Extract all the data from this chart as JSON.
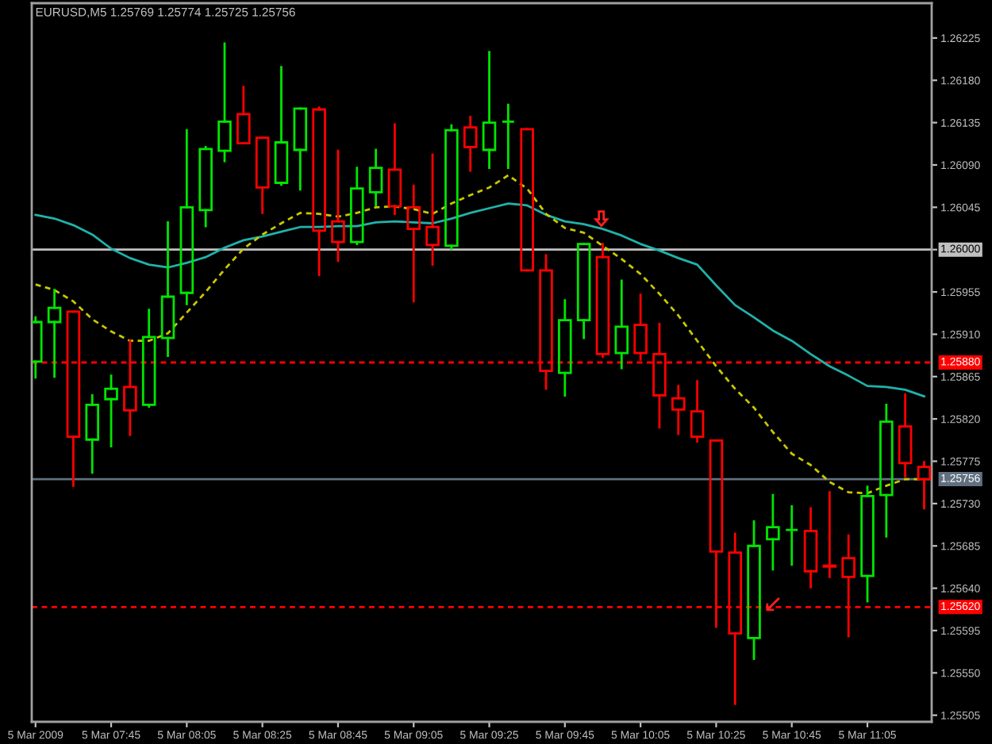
{
  "chart_data": {
    "type": "candlestick",
    "title": "EURUSD,M5 1.25769 1.25774 1.25725 1.25756",
    "x": [
      "2009-03-05T07:25",
      "2009-03-05T07:30",
      "2009-03-05T07:35",
      "2009-03-05T07:40",
      "2009-03-05T07:45",
      "2009-03-05T07:50",
      "2009-03-05T07:55",
      "2009-03-05T08:00",
      "2009-03-05T08:05",
      "2009-03-05T08:10",
      "2009-03-05T08:15",
      "2009-03-05T08:20",
      "2009-03-05T08:25",
      "2009-03-05T08:30",
      "2009-03-05T08:35",
      "2009-03-05T08:40",
      "2009-03-05T08:45",
      "2009-03-05T08:50",
      "2009-03-05T08:55",
      "2009-03-05T09:00",
      "2009-03-05T09:05",
      "2009-03-05T09:10",
      "2009-03-05T09:15",
      "2009-03-05T09:20",
      "2009-03-05T09:25",
      "2009-03-05T09:30",
      "2009-03-05T09:35",
      "2009-03-05T09:40",
      "2009-03-05T09:45",
      "2009-03-05T09:50",
      "2009-03-05T09:55",
      "2009-03-05T10:00",
      "2009-03-05T10:05",
      "2009-03-05T10:10",
      "2009-03-05T10:15",
      "2009-03-05T10:20",
      "2009-03-05T10:25",
      "2009-03-05T10:30",
      "2009-03-05T10:35",
      "2009-03-05T10:40",
      "2009-03-05T10:45",
      "2009-03-05T10:50",
      "2009-03-05T10:55",
      "2009-03-05T11:00",
      "2009-03-05T11:05",
      "2009-03-05T11:10",
      "2009-03-05T11:15",
      "2009-03-05T11:20"
    ],
    "ohlc": [
      [
        1.25881,
        1.25928,
        1.25864,
        1.25923
      ],
      [
        1.25923,
        1.25957,
        1.25865,
        1.25938
      ],
      [
        1.25934,
        1.25934,
        1.25749,
        1.25801
      ],
      [
        1.25798,
        1.25845,
        1.25763,
        1.25835
      ],
      [
        1.25841,
        1.25866,
        1.25791,
        1.25852
      ],
      [
        1.25854,
        1.25903,
        1.25803,
        1.25829
      ],
      [
        1.25835,
        1.25936,
        1.25833,
        1.25907
      ],
      [
        1.25906,
        1.26029,
        1.25887,
        1.2595
      ],
      [
        1.25954,
        1.26127,
        1.25942,
        1.26045
      ],
      [
        1.26042,
        1.26109,
        1.26025,
        1.26107
      ],
      [
        1.26105,
        1.26219,
        1.26094,
        1.26136
      ],
      [
        1.26144,
        1.26173,
        1.26113,
        1.26113
      ],
      [
        1.26119,
        1.26119,
        1.26039,
        1.26066
      ],
      [
        1.26071,
        1.26194,
        1.26069,
        1.26114
      ],
      [
        1.26106,
        1.2615,
        1.26064,
        1.2615
      ],
      [
        1.26149,
        1.26151,
        1.25973,
        1.2602
      ],
      [
        1.2603,
        1.26105,
        1.25988,
        1.26008
      ],
      [
        1.26008,
        1.26087,
        1.26006,
        1.26065
      ],
      [
        1.26061,
        1.26106,
        1.26047,
        1.26087
      ],
      [
        1.26085,
        1.26133,
        1.26038,
        1.26046
      ],
      [
        1.26045,
        1.26068,
        1.25945,
        1.26022
      ],
      [
        1.26024,
        1.26101,
        1.25984,
        1.26005
      ],
      [
        1.26004,
        1.26132,
        1.26001,
        1.26127
      ],
      [
        1.2613,
        1.26141,
        1.26084,
        1.26109
      ],
      [
        1.26106,
        1.2621,
        1.26087,
        1.26135
      ],
      [
        1.26136,
        1.26154,
        1.26087,
        1.26136
      ],
      [
        1.26128,
        1.26128,
        1.25978,
        1.25978
      ],
      [
        1.25978,
        1.25994,
        1.25852,
        1.25871
      ],
      [
        1.25869,
        1.25946,
        1.25845,
        1.25925
      ],
      [
        1.25925,
        1.26006,
        1.25906,
        1.26006
      ],
      [
        1.25992,
        1.26006,
        1.25886,
        1.25889
      ],
      [
        1.2589,
        1.25967,
        1.25874,
        1.25918
      ],
      [
        1.2592,
        1.25952,
        1.25883,
        1.2589
      ],
      [
        1.25889,
        1.25921,
        1.25811,
        1.25845
      ],
      [
        1.25842,
        1.25855,
        1.25804,
        1.2583
      ],
      [
        1.25828,
        1.2586,
        1.25796,
        1.25801
      ],
      [
        1.25797,
        1.25797,
        1.25599,
        1.25679
      ],
      [
        1.25678,
        1.25698,
        1.25517,
        1.25592
      ],
      [
        1.25587,
        1.25711,
        1.25565,
        1.25685
      ],
      [
        1.25692,
        1.25739,
        1.2566,
        1.25705
      ],
      [
        1.25702,
        1.25727,
        1.25665,
        1.25702
      ],
      [
        1.25701,
        1.25725,
        1.25641,
        1.25658
      ],
      [
        1.25664,
        1.25742,
        1.25652,
        1.25663
      ],
      [
        1.25672,
        1.25696,
        1.25589,
        1.25652
      ],
      [
        1.25653,
        1.25748,
        1.25626,
        1.25738
      ],
      [
        1.25739,
        1.25835,
        1.25695,
        1.25817
      ],
      [
        1.25812,
        1.25846,
        1.25759,
        1.25773
      ],
      [
        1.25769,
        1.25774,
        1.25725,
        1.25756
      ]
    ],
    "colors": [
      "#00e600",
      "#00e600",
      "#ff0000",
      "#00e600",
      "#00e600",
      "#ff0000",
      "#00e600",
      "#00e600",
      "#00e600",
      "#00e600",
      "#00e600",
      "#ff0000",
      "#ff0000",
      "#00e600",
      "#00e600",
      "#ff0000",
      "#ff0000",
      "#00e600",
      "#00e600",
      "#ff0000",
      "#ff0000",
      "#ff0000",
      "#00e600",
      "#ff0000",
      "#00e600",
      "#00e600",
      "#ff0000",
      "#ff0000",
      "#00e600",
      "#00e600",
      "#ff0000",
      "#00e600",
      "#ff0000",
      "#ff0000",
      "#ff0000",
      "#ff0000",
      "#ff0000",
      "#ff0000",
      "#00e600",
      "#00e600",
      "#00e600",
      "#ff0000",
      "#ff0000",
      "#ff0000",
      "#00e600",
      "#00e600",
      "#ff0000",
      "#ff0000"
    ],
    "series": [
      {
        "type": "line",
        "color": "#20b2aa",
        "line_style": "solid",
        "values": [
          1.26037,
          1.26033,
          1.26026,
          1.26016,
          1.26001,
          1.25991,
          1.25984,
          1.25981,
          1.25986,
          1.25992,
          1.26002,
          1.2601,
          1.26014,
          1.26019,
          1.26024,
          1.26024,
          1.26025,
          1.26025,
          1.26029,
          1.2603,
          1.26029,
          1.26028,
          1.26033,
          1.26039,
          1.26044,
          1.26049,
          1.26047,
          1.26037,
          1.2603,
          1.26027,
          1.26022,
          1.26015,
          1.26006,
          1.25999,
          1.25991,
          1.25984,
          1.25962,
          1.25941,
          1.25928,
          1.25914,
          1.25903,
          1.25889,
          1.25876,
          1.25866,
          1.25855,
          1.25854,
          1.25851,
          1.25844
        ]
      },
      {
        "type": "line",
        "color": "#c8c800",
        "line_style": "dashed",
        "values": [
          1.25963,
          1.25957,
          1.25945,
          1.25926,
          1.25913,
          1.25903,
          1.25903,
          1.25911,
          1.25933,
          1.25955,
          1.25979,
          1.26001,
          1.26016,
          1.26028,
          1.26039,
          1.26038,
          1.26035,
          1.26039,
          1.26045,
          1.26046,
          1.26043,
          1.26038,
          1.26049,
          1.26058,
          1.26066,
          1.26079,
          1.26065,
          1.26038,
          1.26023,
          1.26018,
          1.26004,
          1.2599,
          1.25974,
          1.25953,
          1.2593,
          1.25903,
          1.25876,
          1.25852,
          1.25832,
          1.25806,
          1.25783,
          1.25771,
          1.25753,
          1.25742,
          1.25741,
          1.25749,
          1.25756,
          1.25756
        ]
      }
    ],
    "ref_lines": [
      {
        "axis": "y",
        "value": 1.26,
        "label": "1.26000",
        "color": "#c0c0c0",
        "line_style": "solid"
      },
      {
        "axis": "y",
        "value": 1.2588,
        "label": "1.25880",
        "color": "#ff0000",
        "line_style": "dashed"
      },
      {
        "axis": "y",
        "value": 1.25756,
        "label": "1.25756",
        "color": "#607080",
        "line_style": "solid"
      },
      {
        "axis": "y",
        "value": 1.2562,
        "label": "1.25620",
        "color": "#ff0000",
        "line_style": "dashed"
      }
    ],
    "xlim": [
      "2009-03-05T07:24",
      "2009-03-05T11:22"
    ],
    "xticks": [
      {
        "value": "2009-03-05T07:25",
        "label": "5 Mar 2009"
      },
      {
        "value": "2009-03-05T07:45",
        "label": "5 Mar 07:45"
      },
      {
        "value": "2009-03-05T08:05",
        "label": "5 Mar 08:05"
      },
      {
        "value": "2009-03-05T08:25",
        "label": "5 Mar 08:25"
      },
      {
        "value": "2009-03-05T08:45",
        "label": "5 Mar 08:45"
      },
      {
        "value": "2009-03-05T09:05",
        "label": "5 Mar 09:05"
      },
      {
        "value": "2009-03-05T09:25",
        "label": "5 Mar 09:25"
      },
      {
        "value": "2009-03-05T09:45",
        "label": "5 Mar 09:45"
      },
      {
        "value": "2009-03-05T10:05",
        "label": "5 Mar 10:05"
      },
      {
        "value": "2009-03-05T10:25",
        "label": "5 Mar 10:25"
      },
      {
        "value": "2009-03-05T10:45",
        "label": "5 Mar 10:45"
      },
      {
        "value": "2009-03-05T11:05",
        "label": "5 Mar 11:05"
      }
    ],
    "ylim": [
      1.25498,
      1.26262
    ],
    "yticks": [
      1.25505,
      {
        "value": 1.2555,
        "label": "1.25550"
      },
      1.25595,
      {
        "value": 1.2564,
        "label": "1.25640"
      },
      1.25685,
      {
        "value": 1.2573,
        "label": "1.25730"
      },
      1.25775,
      {
        "value": 1.2582,
        "label": "1.25820"
      },
      1.25865,
      {
        "value": 1.2591,
        "label": "1.25910"
      },
      1.25955,
      {
        "value": 1.26,
        "label": null
      },
      1.26045,
      {
        "value": 1.2609,
        "label": "1.26090"
      },
      1.26135,
      {
        "value": 1.2618,
        "label": "1.26180"
      },
      1.26225
    ]
  }
}
